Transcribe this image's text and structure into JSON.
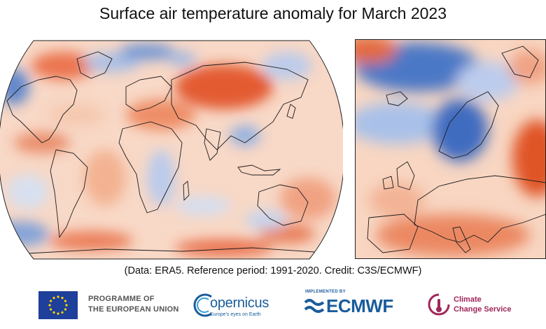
{
  "title": "Surface air temperature anomaly for March 2023",
  "caption": "(Data: ERA5.  Reference period: 1991-2020.  Credit: C3S/ECMWF)",
  "maps": {
    "world": {
      "projection": "global-robinson",
      "region": "World"
    },
    "europe": {
      "region": "Europe"
    }
  },
  "colors": {
    "warm": "#e65a2e",
    "warm_light": "#f6c0a3",
    "cool": "#3f6cc0",
    "cool_light": "#c5d6ee",
    "neutral": "#fbeee6"
  },
  "footer": {
    "eu": {
      "line1": "PROGRAMME OF",
      "line2": "THE EUROPEAN UNION",
      "icon": "eu-flag-icon"
    },
    "copernicus": {
      "name": "opernicus",
      "tagline": "Europe's eyes on Earth",
      "icon": "copernicus-c-icon"
    },
    "ecmwf": {
      "implemented_by": "IMPLEMENTED BY",
      "name": "ECMWF",
      "icon": "ecmwf-wave-icon"
    },
    "c3s": {
      "line1": "Climate",
      "line2": "Change Service",
      "icon": "thermometer-icon"
    }
  }
}
